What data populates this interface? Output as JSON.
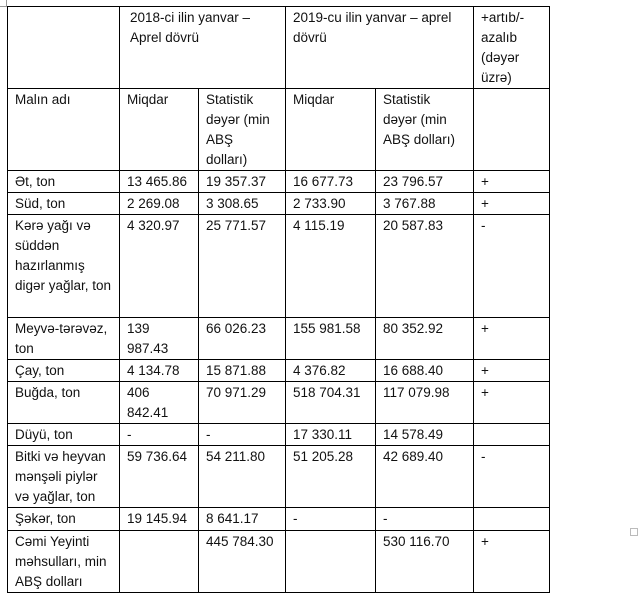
{
  "header": {
    "period_2018": "2018-ci ilin yanvar – Aprel dövrü",
    "period_2019": "2019-cu ilin yanvar – aprel dövrü",
    "change": "+artıb/- azalıb (dəyər üzrə)",
    "product_name": "Malın adı",
    "qty_2018": "Miqdar",
    "value_2018": "Statistik dəyər (min ABŞ dolları)",
    "qty_2019": "Miqdar",
    "value_2019": "Statistik dəyər (min ABŞ dolları)"
  },
  "rows": [
    {
      "name": "Ət, ton",
      "q18": "13 465.86",
      "v18": "19 357.37",
      "q19": "16 677.73",
      "v19": "23 796.57",
      "chg": "+"
    },
    {
      "name": "Süd, ton",
      "q18": "2 269.08",
      "v18": "3 308.65",
      "q19": "2 733.90",
      "v19": "3 767.88",
      "chg": "+"
    },
    {
      "name": "Kərə yağı və süddən hazırlanmış digər yağlar, ton",
      "q18": "4 320.97",
      "v18": "25 771.57",
      "q19": "4 115.19",
      "v19": "20 587.83",
      "chg": "-"
    },
    {
      "name": "Meyvə-tərəvəz, ton",
      "q18": "139 987.43",
      "v18": "66 026.23",
      "q19": "155 981.58",
      "v19": "80 352.92",
      "chg": "+"
    },
    {
      "name": "Çay, ton",
      "q18": "4 134.78",
      "v18": "15 871.88",
      "q19": "4 376.82",
      "v19": "16 688.40",
      "chg": "+"
    },
    {
      "name": "Buğda, ton",
      "q18": "406 842.41",
      "v18": "70 971.29",
      "q19": "518 704.31",
      "v19": "117 079.98",
      "chg": "+"
    },
    {
      "name": "Düyü, ton",
      "q18": "-",
      "v18": "-",
      "q19": "17 330.11",
      "v19": "14 578.49",
      "chg": ""
    },
    {
      "name": "Bitki və heyvan mənşəli piylər və yağlar, ton",
      "q18": "59 736.64",
      "v18": "54 211.80",
      "q19": "51 205.28",
      "v19": "42 689.40",
      "chg": "-"
    },
    {
      "name": "Şəkər, ton",
      "q18": "19 145.94",
      "v18": "8 641.17",
      "q19": " -",
      "v19": "-",
      "chg": ""
    },
    {
      "name": "Cəmi Yeyinti məhsulları, min ABŞ dolları",
      "q18": "",
      "v18": "445 784.30",
      "q19": "",
      "v19": "530 116.70",
      "chg": "+"
    }
  ]
}
